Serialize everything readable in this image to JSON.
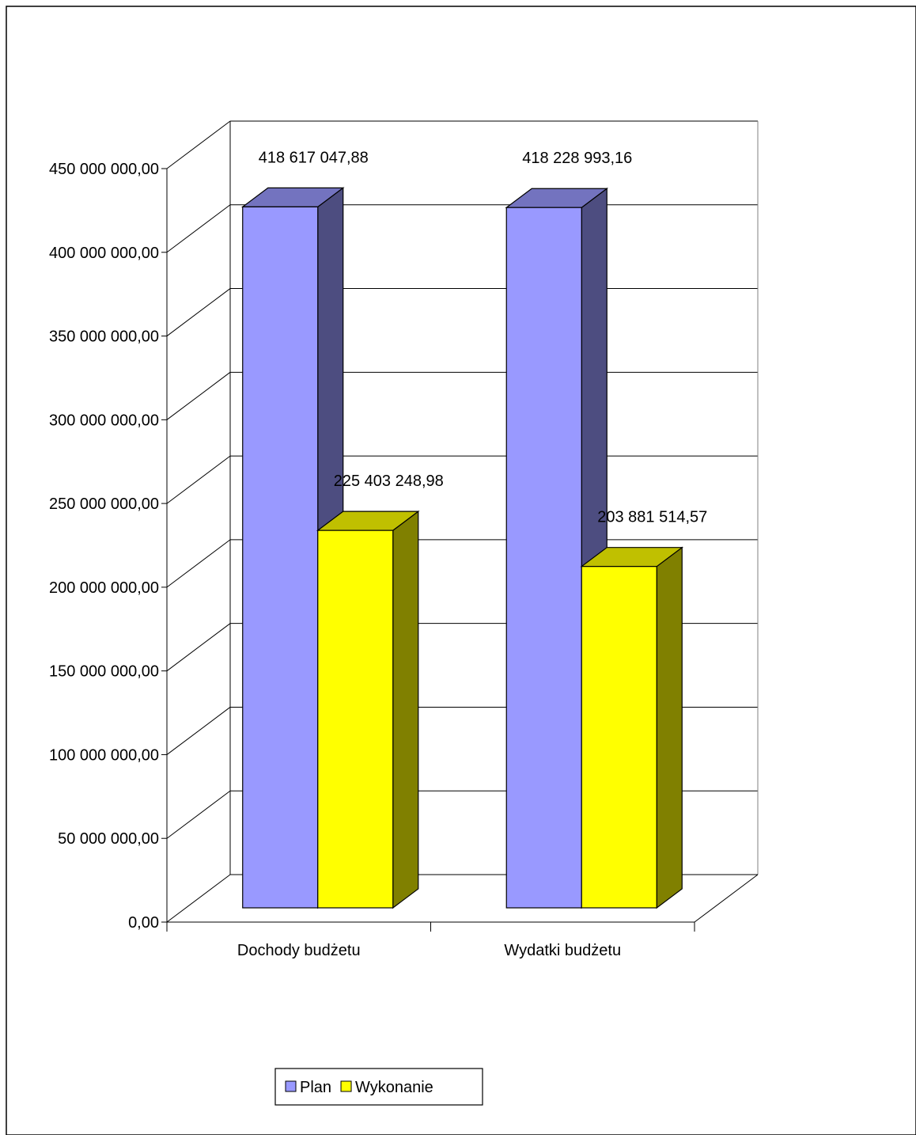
{
  "chart_data": {
    "type": "bar",
    "title": "",
    "xlabel": "",
    "ylabel": "",
    "categories": [
      "Dochody budżetu",
      "Wydatki budżetu"
    ],
    "series": [
      {
        "name": "Plan",
        "values": [
          418617047.88,
          418228993.16
        ],
        "labels": [
          "418 617 047,88",
          "418 228 993,16"
        ],
        "color": "#9999ff",
        "side_color": "#4d4d80",
        "top_color": "#7373bf"
      },
      {
        "name": "Wykonanie",
        "values": [
          225403248.98,
          203881514.57
        ],
        "labels": [
          "225 403 248,98",
          "203 881 514,57"
        ],
        "color": "#ffff00",
        "side_color": "#808000",
        "top_color": "#c0c000"
      }
    ],
    "ylim": [
      0,
      450000000
    ],
    "yticks": [
      0,
      50000000,
      100000000,
      150000000,
      200000000,
      250000000,
      300000000,
      350000000,
      400000000,
      450000000
    ],
    "ytick_labels": [
      "0,00",
      "50 000 000,00",
      "100 000 000,00",
      "150 000 000,00",
      "200 000 000,00",
      "250 000 000,00",
      "300 000 000,00",
      "350 000 000,00",
      "400 000 000,00",
      "450 000 000,00"
    ],
    "grid": true,
    "legend_position": "bottom"
  }
}
